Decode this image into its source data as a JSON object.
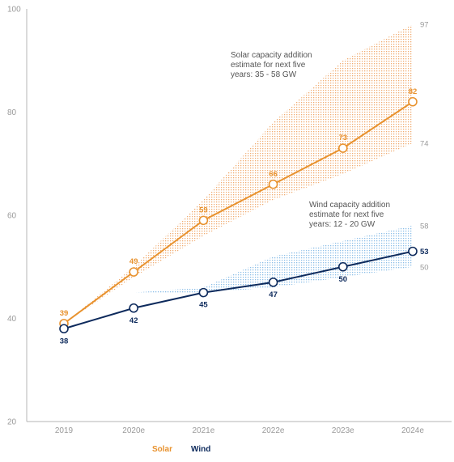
{
  "chart_data": {
    "type": "line",
    "title": "",
    "xlabel": "",
    "ylabel": "",
    "categories": [
      "2019",
      "2020e",
      "2021e",
      "2022e",
      "2023e",
      "2024e"
    ],
    "ylim": [
      20,
      100
    ],
    "yticks": [
      "20",
      "40",
      "60",
      "80",
      "100"
    ],
    "grid": false,
    "legend_position": "bottom-left",
    "series": [
      {
        "name": "Solar",
        "color": "#E8922E",
        "values": [
          39,
          49,
          59,
          66,
          73,
          82
        ],
        "labels": [
          "39",
          "49",
          "59",
          "66",
          "73",
          "82"
        ],
        "band": {
          "lower": [
            39,
            48,
            56,
            63,
            68,
            74
          ],
          "upper": [
            39,
            50,
            63,
            78,
            90,
            97
          ],
          "end_lower_label": "74",
          "end_upper_label": "97"
        }
      },
      {
        "name": "Wind",
        "color": "#0D2A5C",
        "values": [
          38,
          42,
          45,
          47,
          50,
          53
        ],
        "labels": [
          "38",
          "42",
          "45",
          "47",
          "50",
          "53"
        ],
        "band": {
          "lower": [
            45,
            45,
            45,
            46,
            48,
            50
          ],
          "upper": [
            45,
            45,
            46,
            52,
            55,
            58
          ],
          "end_lower_label": "50",
          "end_upper_label": "58"
        }
      }
    ],
    "annotations": [
      {
        "id": "solar",
        "lines": [
          "Solar capacity addition",
          "estimate for next five",
          "years: 35 - 58 GW"
        ]
      },
      {
        "id": "wind",
        "lines": [
          "Wind capacity addition",
          "estimate for next five",
          "years: 12 - 20 GW"
        ]
      }
    ]
  }
}
